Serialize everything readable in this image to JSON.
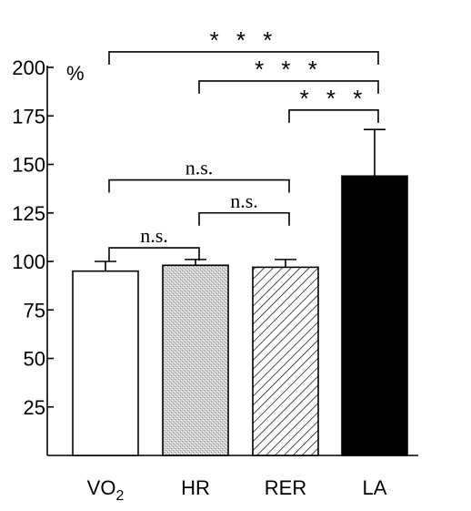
{
  "chart_data": {
    "type": "bar",
    "title": "",
    "xlabel": "",
    "ylabel": "",
    "unit": "%",
    "ylim": [
      0,
      200
    ],
    "yticks": [
      25,
      50,
      75,
      100,
      125,
      150,
      175,
      200
    ],
    "categories": [
      {
        "main": "VO",
        "sub": "2"
      },
      {
        "main": "HR",
        "sub": ""
      },
      {
        "main": "RER",
        "sub": ""
      },
      {
        "main": "LA",
        "sub": ""
      }
    ],
    "values": [
      95,
      98,
      97,
      144
    ],
    "errors": [
      5,
      3,
      4,
      24
    ],
    "fills": [
      "white",
      "stipple",
      "hatch",
      "black"
    ],
    "brackets": [
      {
        "from": 0,
        "to": 1,
        "label": "n.s.",
        "y": 107
      },
      {
        "from": 0,
        "to": 2,
        "label": "n.s.",
        "y": 142
      },
      {
        "from": 1,
        "to": 2,
        "label": "n.s.",
        "y": 125
      },
      {
        "from": 2,
        "to": 3,
        "label": "* * *",
        "y": 178
      },
      {
        "from": 1,
        "to": 3,
        "label": "* * *",
        "y": 193
      },
      {
        "from": 0,
        "to": 3,
        "label": "* * *",
        "y": 208
      }
    ],
    "grid": false,
    "colors": {
      "axis": "#000000",
      "bar_dark": "#000000",
      "stipple": "#c8c8c8"
    }
  }
}
